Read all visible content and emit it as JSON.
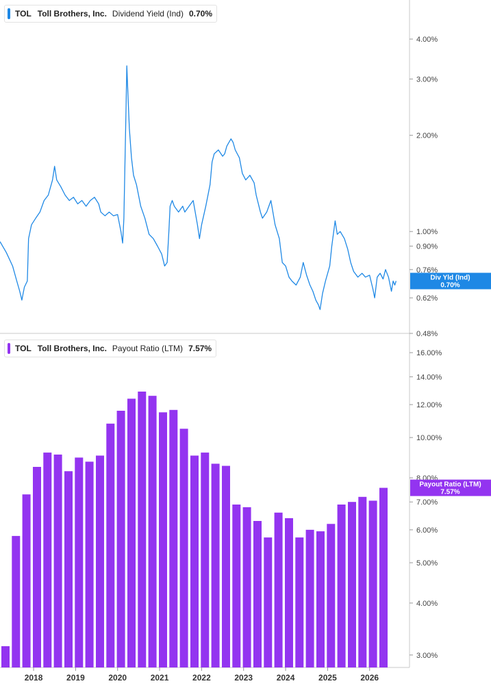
{
  "chart_data": [
    {
      "type": "line",
      "ticker": "TOL",
      "company": "Toll Brothers, Inc.",
      "metric": "Dividend Yield (Ind)",
      "current_value": "0.70%",
      "badge": {
        "label": "Div Yld (Ind)",
        "value": "0.70%"
      },
      "color": "#1e88e5",
      "yscale": "log",
      "ylim": [
        0.48,
        5.3
      ],
      "y_ticks": [
        {
          "v": 4.0,
          "label": "4.00%"
        },
        {
          "v": 3.0,
          "label": "3.00%"
        },
        {
          "v": 2.0,
          "label": "2.00%"
        },
        {
          "v": 1.0,
          "label": "1.00%"
        },
        {
          "v": 0.9,
          "label": "0.90%"
        },
        {
          "v": 0.76,
          "label": "0.76%"
        },
        {
          "v": 0.62,
          "label": "0.62%"
        },
        {
          "v": 0.48,
          "label": "0.48%"
        }
      ],
      "xlim": [
        2017.2,
        2026.95
      ],
      "points": [
        [
          2017.2,
          0.93
        ],
        [
          2017.35,
          0.86
        ],
        [
          2017.5,
          0.78
        ],
        [
          2017.6,
          0.7
        ],
        [
          2017.67,
          0.65
        ],
        [
          2017.72,
          0.61
        ],
        [
          2017.78,
          0.67
        ],
        [
          2017.85,
          0.7
        ],
        [
          2017.88,
          0.95
        ],
        [
          2017.95,
          1.05
        ],
        [
          2018.05,
          1.1
        ],
        [
          2018.15,
          1.15
        ],
        [
          2018.25,
          1.25
        ],
        [
          2018.35,
          1.3
        ],
        [
          2018.45,
          1.45
        ],
        [
          2018.5,
          1.6
        ],
        [
          2018.55,
          1.45
        ],
        [
          2018.65,
          1.38
        ],
        [
          2018.75,
          1.3
        ],
        [
          2018.85,
          1.25
        ],
        [
          2018.95,
          1.28
        ],
        [
          2019.05,
          1.22
        ],
        [
          2019.15,
          1.25
        ],
        [
          2019.25,
          1.2
        ],
        [
          2019.35,
          1.25
        ],
        [
          2019.45,
          1.28
        ],
        [
          2019.55,
          1.22
        ],
        [
          2019.6,
          1.15
        ],
        [
          2019.7,
          1.12
        ],
        [
          2019.8,
          1.15
        ],
        [
          2019.9,
          1.12
        ],
        [
          2020.0,
          1.13
        ],
        [
          2020.08,
          1.0
        ],
        [
          2020.12,
          0.92
        ],
        [
          2020.15,
          1.1
        ],
        [
          2020.2,
          2.4
        ],
        [
          2020.22,
          3.3
        ],
        [
          2020.25,
          2.6
        ],
        [
          2020.28,
          2.1
        ],
        [
          2020.33,
          1.7
        ],
        [
          2020.38,
          1.5
        ],
        [
          2020.45,
          1.4
        ],
        [
          2020.55,
          1.2
        ],
        [
          2020.65,
          1.1
        ],
        [
          2020.75,
          0.98
        ],
        [
          2020.85,
          0.95
        ],
        [
          2020.95,
          0.9
        ],
        [
          2021.05,
          0.85
        ],
        [
          2021.12,
          0.78
        ],
        [
          2021.18,
          0.8
        ],
        [
          2021.22,
          1.0
        ],
        [
          2021.25,
          1.2
        ],
        [
          2021.3,
          1.25
        ],
        [
          2021.35,
          1.2
        ],
        [
          2021.45,
          1.15
        ],
        [
          2021.55,
          1.2
        ],
        [
          2021.6,
          1.15
        ],
        [
          2021.7,
          1.2
        ],
        [
          2021.8,
          1.25
        ],
        [
          2021.9,
          1.05
        ],
        [
          2021.95,
          0.95
        ],
        [
          2022.0,
          1.05
        ],
        [
          2022.1,
          1.2
        ],
        [
          2022.2,
          1.4
        ],
        [
          2022.25,
          1.65
        ],
        [
          2022.3,
          1.75
        ],
        [
          2022.4,
          1.8
        ],
        [
          2022.5,
          1.72
        ],
        [
          2022.55,
          1.75
        ],
        [
          2022.6,
          1.85
        ],
        [
          2022.7,
          1.95
        ],
        [
          2022.75,
          1.9
        ],
        [
          2022.8,
          1.8
        ],
        [
          2022.9,
          1.7
        ],
        [
          2022.97,
          1.52
        ],
        [
          2023.05,
          1.45
        ],
        [
          2023.15,
          1.5
        ],
        [
          2023.25,
          1.42
        ],
        [
          2023.3,
          1.3
        ],
        [
          2023.4,
          1.15
        ],
        [
          2023.45,
          1.1
        ],
        [
          2023.55,
          1.15
        ],
        [
          2023.65,
          1.25
        ],
        [
          2023.75,
          1.05
        ],
        [
          2023.85,
          0.95
        ],
        [
          2023.92,
          0.8
        ],
        [
          2024.0,
          0.78
        ],
        [
          2024.08,
          0.72
        ],
        [
          2024.15,
          0.7
        ],
        [
          2024.25,
          0.68
        ],
        [
          2024.35,
          0.72
        ],
        [
          2024.42,
          0.8
        ],
        [
          2024.5,
          0.73
        ],
        [
          2024.58,
          0.68
        ],
        [
          2024.65,
          0.65
        ],
        [
          2024.72,
          0.61
        ],
        [
          2024.78,
          0.59
        ],
        [
          2024.82,
          0.57
        ],
        [
          2024.88,
          0.64
        ],
        [
          2024.95,
          0.7
        ],
        [
          2025.05,
          0.78
        ],
        [
          2025.1,
          0.9
        ],
        [
          2025.18,
          1.08
        ],
        [
          2025.23,
          0.98
        ],
        [
          2025.3,
          1.0
        ],
        [
          2025.4,
          0.95
        ],
        [
          2025.48,
          0.88
        ],
        [
          2025.55,
          0.8
        ],
        [
          2025.62,
          0.75
        ],
        [
          2025.72,
          0.72
        ],
        [
          2025.82,
          0.74
        ],
        [
          2025.9,
          0.72
        ],
        [
          2026.0,
          0.73
        ],
        [
          2026.08,
          0.66
        ],
        [
          2026.12,
          0.62
        ],
        [
          2026.18,
          0.72
        ],
        [
          2026.25,
          0.74
        ],
        [
          2026.32,
          0.71
        ],
        [
          2026.38,
          0.76
        ],
        [
          2026.45,
          0.72
        ],
        [
          2026.52,
          0.65
        ],
        [
          2026.56,
          0.7
        ],
        [
          2026.6,
          0.68
        ],
        [
          2026.63,
          0.7
        ]
      ]
    },
    {
      "type": "bar",
      "ticker": "TOL",
      "company": "Toll Brothers, Inc.",
      "metric": "Payout Ratio (LTM)",
      "current_value": "7.57%",
      "badge": {
        "label": "Payout Ratio (LTM)",
        "value": "7.57%"
      },
      "color": "#9334f0",
      "yscale": "log",
      "ylim": [
        2.8,
        17.8
      ],
      "y_ticks": [
        {
          "v": 16.0,
          "label": "16.00%"
        },
        {
          "v": 14.0,
          "label": "14.00%"
        },
        {
          "v": 12.0,
          "label": "12.00%"
        },
        {
          "v": 10.0,
          "label": "10.00%"
        },
        {
          "v": 8.0,
          "label": "8.00%"
        },
        {
          "v": 7.0,
          "label": "7.00%"
        },
        {
          "v": 6.0,
          "label": "6.00%"
        },
        {
          "v": 5.0,
          "label": "5.00%"
        },
        {
          "v": 4.0,
          "label": "4.00%"
        },
        {
          "v": 3.0,
          "label": "3.00%"
        }
      ],
      "xlim": [
        2017.2,
        2026.95
      ],
      "bars": [
        [
          2017.33,
          3.15
        ],
        [
          2017.58,
          5.8
        ],
        [
          2017.83,
          7.3
        ],
        [
          2018.08,
          8.5
        ],
        [
          2018.33,
          9.2
        ],
        [
          2018.58,
          9.1
        ],
        [
          2018.83,
          8.3
        ],
        [
          2019.08,
          8.95
        ],
        [
          2019.33,
          8.75
        ],
        [
          2019.58,
          9.05
        ],
        [
          2019.83,
          10.8
        ],
        [
          2020.08,
          11.6
        ],
        [
          2020.33,
          12.4
        ],
        [
          2020.58,
          12.9
        ],
        [
          2020.83,
          12.6
        ],
        [
          2021.08,
          11.5
        ],
        [
          2021.33,
          11.65
        ],
        [
          2021.58,
          10.5
        ],
        [
          2021.83,
          9.05
        ],
        [
          2022.08,
          9.2
        ],
        [
          2022.33,
          8.65
        ],
        [
          2022.58,
          8.55
        ],
        [
          2022.83,
          6.9
        ],
        [
          2023.08,
          6.8
        ],
        [
          2023.33,
          6.3
        ],
        [
          2023.58,
          5.75
        ],
        [
          2023.83,
          6.6
        ],
        [
          2024.08,
          6.4
        ],
        [
          2024.33,
          5.75
        ],
        [
          2024.58,
          6.0
        ],
        [
          2024.83,
          5.95
        ],
        [
          2025.08,
          6.2
        ],
        [
          2025.33,
          6.9
        ],
        [
          2025.58,
          7.0
        ],
        [
          2025.83,
          7.2
        ],
        [
          2026.08,
          7.05
        ],
        [
          2026.33,
          7.57
        ]
      ]
    }
  ],
  "x_axis": {
    "ticks": [
      {
        "v": 2018,
        "label": "2018"
      },
      {
        "v": 2019,
        "label": "2019"
      },
      {
        "v": 2020,
        "label": "2020"
      },
      {
        "v": 2021,
        "label": "2021"
      },
      {
        "v": 2022,
        "label": "2022"
      },
      {
        "v": 2023,
        "label": "2023"
      },
      {
        "v": 2024,
        "label": "2024"
      },
      {
        "v": 2025,
        "label": "2025"
      },
      {
        "v": 2026,
        "label": "2026"
      }
    ]
  }
}
